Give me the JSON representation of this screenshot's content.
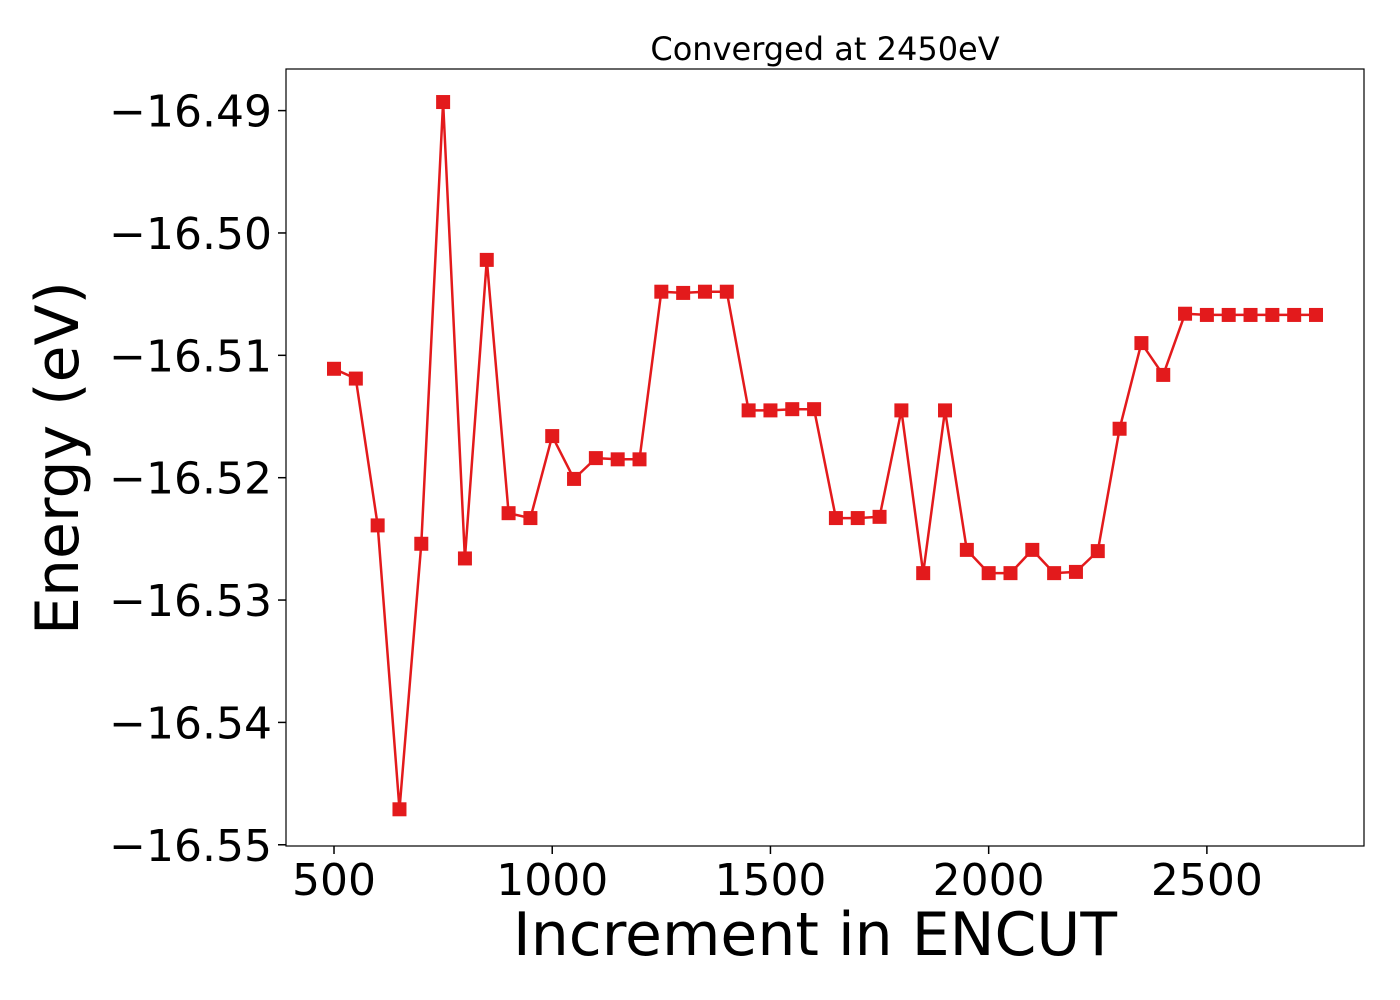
{
  "chart_data": {
    "type": "line",
    "title": "Converged at 2450eV",
    "xlabel": "Increment in ENCUT",
    "ylabel": "Energy (eV)",
    "xlim": [
      390,
      2860
    ],
    "ylim": [
      -16.5501,
      -16.4866
    ],
    "x_ticks": [
      500,
      1000,
      1500,
      2000,
      2500
    ],
    "x_tick_labels": [
      "500",
      "1000",
      "1500",
      "2000",
      "2500"
    ],
    "y_ticks": [
      -16.49,
      -16.5,
      -16.51,
      -16.52,
      -16.53,
      -16.54,
      -16.55
    ],
    "y_tick_labels": [
      "−16.49",
      "−16.50",
      "−16.51",
      "−16.52",
      "−16.53",
      "−16.54",
      "−16.55"
    ],
    "grid": false,
    "marker": "square",
    "series": [
      {
        "color": "#e31a1c",
        "x": [
          500,
          550,
          600,
          650,
          700,
          750,
          800,
          850,
          900,
          950,
          1000,
          1050,
          1100,
          1150,
          1200,
          1250,
          1300,
          1350,
          1400,
          1450,
          1500,
          1550,
          1600,
          1650,
          1700,
          1750,
          1800,
          1850,
          1900,
          1950,
          2000,
          2050,
          2100,
          2150,
          2200,
          2250,
          2300,
          2350,
          2400,
          2450,
          2500,
          2550,
          2600,
          2650,
          2700,
          2750
        ],
        "y": [
          -16.5111,
          -16.5119,
          -16.5239,
          -16.5471,
          -16.5254,
          -16.4893,
          -16.5266,
          -16.5022,
          -16.5229,
          -16.5233,
          -16.5166,
          -16.5201,
          -16.5184,
          -16.5185,
          -16.5185,
          -16.5048,
          -16.5049,
          -16.5048,
          -16.5048,
          -16.5145,
          -16.5145,
          -16.5144,
          -16.5144,
          -16.5233,
          -16.5233,
          -16.5232,
          -16.5145,
          -16.5278,
          -16.5145,
          -16.5259,
          -16.5278,
          -16.5278,
          -16.5259,
          -16.5278,
          -16.5277,
          -16.526,
          -16.516,
          -16.509,
          -16.5116,
          -16.5066,
          -16.5067,
          -16.5067,
          -16.5067,
          -16.5067,
          -16.5067,
          -16.5067
        ]
      }
    ]
  }
}
